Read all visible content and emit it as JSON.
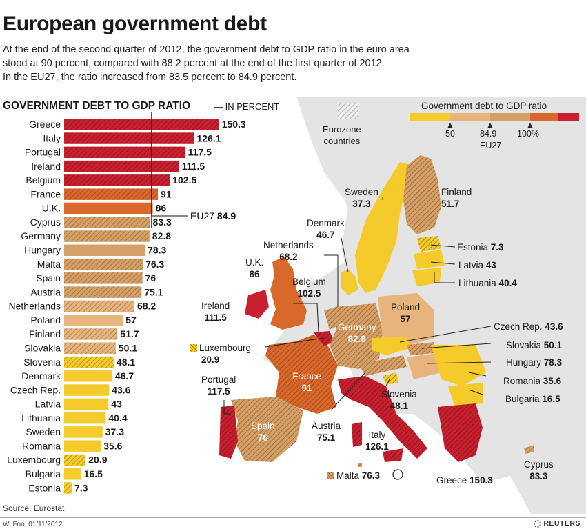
{
  "title": "European government debt",
  "intro": [
    "At the end of the second quarter of 2012, the government debt to GDP ratio in the euro area",
    "stood at 90 percent, compared with 88.2 percent at the end of the first quarter of 2012.",
    "In the EU27, the ratio increased from 83.5 percent to 84.9 percent."
  ],
  "bar_chart_title": "GOVERNMENT DEBT TO GDP RATIO",
  "bar_chart_subtitle": "— IN PERCENT",
  "eu27_marker": {
    "label": "EU27",
    "value": "84.9"
  },
  "legend": {
    "title": "Government debt to GDP ratio",
    "ticks": [
      "50",
      "84.9",
      "100%"
    ],
    "tick_sub": "EU27",
    "eurozone_label_line1": "Eurozone",
    "eurozone_label_line2": "countries"
  },
  "colors": {
    "red": "#c8202e",
    "orange": "#d9682b",
    "tan": "#d4a066",
    "lighttan": "#e6b47c",
    "yellow": "#f4cb2a",
    "map_background": "#e4e4e4"
  },
  "chart_data": {
    "type": "bar",
    "orientation": "horizontal",
    "categories": [
      "Greece",
      "Italy",
      "Portugal",
      "Ireland",
      "Belgium",
      "France",
      "U.K.",
      "Cyprus",
      "Germany",
      "Hungary",
      "Malta",
      "Spain",
      "Austria",
      "Netherlands",
      "Poland",
      "Finland",
      "Slovakia",
      "Slovenia",
      "Denmark",
      "Czech Rep.",
      "Latvia",
      "Lithuania",
      "Sweden",
      "Romania",
      "Luxembourg",
      "Bulgaria",
      "Estonia"
    ],
    "values": [
      150.3,
      126.1,
      117.5,
      111.5,
      102.5,
      91,
      86,
      83.3,
      82.8,
      78.3,
      76.3,
      76,
      75.1,
      68.2,
      57,
      51.7,
      50.1,
      48.1,
      46.7,
      43.6,
      43,
      40.4,
      37.3,
      35.6,
      20.9,
      16.5,
      7.3
    ],
    "value_labels": [
      "150.3",
      "126.1",
      "117.5",
      "111.5",
      "102.5",
      "91",
      "86",
      "83.3",
      "82.8",
      "78.3",
      "76.3",
      "76",
      "75.1",
      "68.2",
      "57",
      "51.7",
      "50.1",
      "48.1",
      "46.7",
      "43.6",
      "43",
      "40.4",
      "37.3",
      "35.6",
      "20.9",
      "16.5",
      "7.3"
    ],
    "eurozone": [
      true,
      true,
      true,
      true,
      true,
      true,
      false,
      true,
      true,
      false,
      true,
      true,
      true,
      true,
      false,
      true,
      true,
      true,
      false,
      false,
      false,
      false,
      false,
      false,
      true,
      false,
      true
    ],
    "reference_line": 84.9
  },
  "map_labels": [
    {
      "name": "Sweden",
      "value": "37.3"
    },
    {
      "name": "Finland",
      "value": "51.7"
    },
    {
      "name": "Denmark",
      "value": "46.7"
    },
    {
      "name": "Estonia",
      "value": "7.3"
    },
    {
      "name": "Netherlands",
      "value": "68.2"
    },
    {
      "name": "Latvia",
      "value": "43"
    },
    {
      "name": "U.K.",
      "value": "86"
    },
    {
      "name": "Lithuania",
      "value": "40.4"
    },
    {
      "name": "Belgium",
      "value": "102.5"
    },
    {
      "name": "Ireland",
      "value": "111.5"
    },
    {
      "name": "Poland",
      "value": "57"
    },
    {
      "name": "Germany",
      "value": "82.8"
    },
    {
      "name": "Czech Rep.",
      "value": "43.6"
    },
    {
      "name": "Luxembourg",
      "value": "20.9"
    },
    {
      "name": "Slovakia",
      "value": "50.1"
    },
    {
      "name": "France",
      "value": "91"
    },
    {
      "name": "Hungary",
      "value": "78.3"
    },
    {
      "name": "Portugal",
      "value": "117.5"
    },
    {
      "name": "Romania",
      "value": "35.6"
    },
    {
      "name": "Slovenia",
      "value": "48.1"
    },
    {
      "name": "Bulgaria",
      "value": "16.5"
    },
    {
      "name": "Spain",
      "value": "76"
    },
    {
      "name": "Austria",
      "value": "75.1"
    },
    {
      "name": "Italy",
      "value": "126.1"
    },
    {
      "name": "Cyprus",
      "value": "83.3"
    },
    {
      "name": "Malta",
      "value": "76.3"
    },
    {
      "name": "Greece",
      "value": "150.3"
    }
  ],
  "source": "Source: Eurostat",
  "credit": "W. Foo, 01/11/2012",
  "brand": "REUTERS"
}
